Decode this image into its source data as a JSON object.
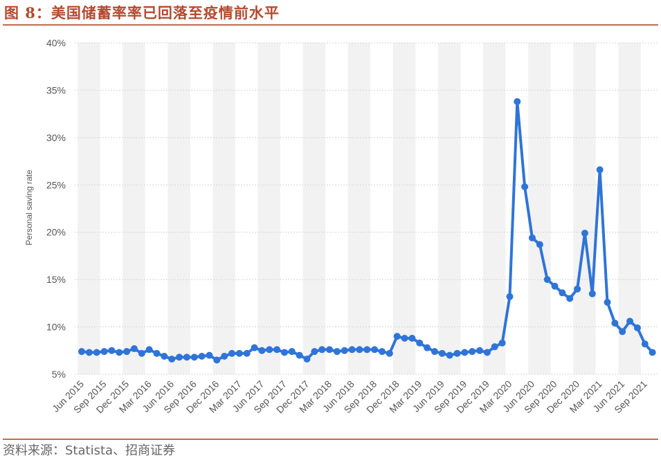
{
  "figure": {
    "title": "图 8：美国储蓄率率已回落至疫情前水平",
    "source": "资料来源：Statista、招商证券"
  },
  "colors": {
    "title": "#b24a2f",
    "rule": "#c06a4f",
    "line": "#2f74d8",
    "band": "#f2f2f2",
    "grid": "#d4d4d4",
    "tick_text": "#555555"
  },
  "chart_data": {
    "type": "line",
    "title": "",
    "xlabel": "",
    "ylabel": "Personal saving rate",
    "ylim": [
      5,
      40
    ],
    "y_ticks": [
      5,
      10,
      15,
      20,
      25,
      30,
      35,
      40
    ],
    "y_tick_labels": [
      "5%",
      "10%",
      "15%",
      "20%",
      "25%",
      "30%",
      "35%",
      "40%"
    ],
    "grid": "horizontal dashed",
    "x": [
      "Jun 2015",
      "Jul 2015",
      "Aug 2015",
      "Sep 2015",
      "Oct 2015",
      "Nov 2015",
      "Dec 2015",
      "Jan 2016",
      "Feb 2016",
      "Mar 2016",
      "Apr 2016",
      "May 2016",
      "Jun 2016",
      "Jul 2016",
      "Aug 2016",
      "Sep 2016",
      "Oct 2016",
      "Nov 2016",
      "Dec 2016",
      "Jan 2017",
      "Feb 2017",
      "Mar 2017",
      "Apr 2017",
      "May 2017",
      "Jun 2017",
      "Jul 2017",
      "Aug 2017",
      "Sep 2017",
      "Oct 2017",
      "Nov 2017",
      "Dec 2017",
      "Jan 2018",
      "Feb 2018",
      "Mar 2018",
      "Apr 2018",
      "May 2018",
      "Jun 2018",
      "Jul 2018",
      "Aug 2018",
      "Sep 2018",
      "Oct 2018",
      "Nov 2018",
      "Dec 2018",
      "Jan 2019",
      "Feb 2019",
      "Mar 2019",
      "Apr 2019",
      "May 2019",
      "Jun 2019",
      "Jul 2019",
      "Aug 2019",
      "Sep 2019",
      "Oct 2019",
      "Nov 2019",
      "Dec 2019",
      "Jan 2020",
      "Feb 2020",
      "Mar 2020",
      "Apr 2020",
      "May 2020",
      "Jun 2020",
      "Jul 2020",
      "Aug 2020",
      "Sep 2020",
      "Oct 2020",
      "Nov 2020",
      "Dec 2020",
      "Jan 2021",
      "Feb 2021",
      "Mar 2021",
      "Apr 2021",
      "May 2021",
      "Jun 2021",
      "Jul 2021",
      "Aug 2021",
      "Sep 2021",
      "Oct 2021"
    ],
    "x_tick_labels": [
      "Jun 2015",
      "Sep 2015",
      "Dec 2015",
      "Mar 2016",
      "Jun 2016",
      "Sep 2016",
      "Dec 2016",
      "Mar 2017",
      "Jun 2017",
      "Sep 2017",
      "Dec 2017",
      "Mar 2018",
      "Jun 2018",
      "Sep 2018",
      "Dec 2018",
      "Mar 2019",
      "Jun 2019",
      "Sep 2019",
      "Dec 2019",
      "Mar 2020",
      "Jun 2020",
      "Sep 2020",
      "Dec 2020",
      "Mar 2021",
      "Jun 2021",
      "Sep 2021"
    ],
    "series": [
      {
        "name": "",
        "values": [
          7.4,
          7.3,
          7.3,
          7.4,
          7.5,
          7.3,
          7.4,
          7.7,
          7.2,
          7.6,
          7.2,
          6.9,
          6.6,
          6.8,
          6.8,
          6.8,
          6.9,
          7.0,
          6.5,
          6.9,
          7.2,
          7.2,
          7.2,
          7.8,
          7.5,
          7.6,
          7.6,
          7.3,
          7.4,
          7.0,
          6.6,
          7.4,
          7.6,
          7.6,
          7.4,
          7.5,
          7.6,
          7.6,
          7.6,
          7.6,
          7.4,
          7.2,
          9.0,
          8.8,
          8.8,
          8.3,
          7.8,
          7.4,
          7.2,
          7.0,
          7.2,
          7.3,
          7.4,
          7.5,
          7.3,
          7.9,
          8.3,
          13.2,
          33.8,
          24.8,
          19.4,
          18.7,
          15.0,
          14.3,
          13.6,
          13.0,
          14.0,
          19.9,
          13.5,
          26.6,
          12.6,
          10.4,
          9.5,
          10.6,
          9.9,
          8.2,
          7.3
        ]
      }
    ]
  }
}
